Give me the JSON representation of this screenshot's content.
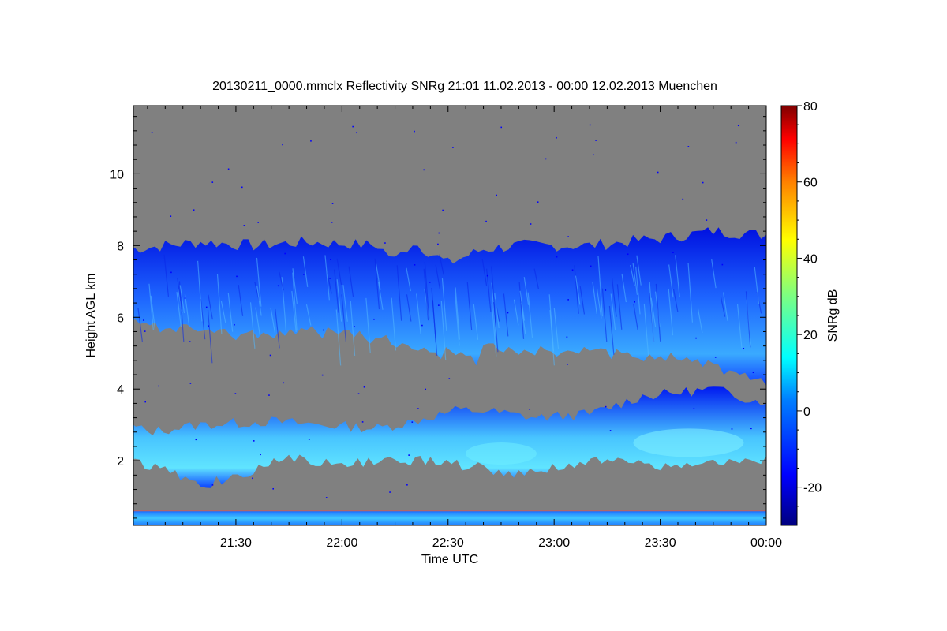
{
  "chart_data": {
    "type": "heatmap",
    "title": "20130211_0000.mmclx Reflectivity SNRg   21:01 11.02.2013 - 00:00 12.02.2013 Muenchen",
    "xlabel": "Time UTC",
    "ylabel": "Height AGL km",
    "x_ticks": [
      "21:30",
      "22:00",
      "22:30",
      "23:00",
      "23:30",
      "00:00"
    ],
    "x_tick_minutes": [
      30,
      60,
      90,
      120,
      150,
      180
    ],
    "xlim_minutes": [
      1,
      180
    ],
    "y_ticks": [
      2,
      4,
      6,
      8,
      10
    ],
    "ylim": [
      0.2,
      11.9
    ],
    "colorbar": {
      "label": "SNRg dB",
      "ticks": [
        -20,
        0,
        20,
        40,
        60,
        80
      ],
      "range": [
        -30,
        80
      ]
    },
    "background_color": "#808080",
    "layers": [
      {
        "name": "upper cloud layer",
        "time_minutes": [
          0,
          180
        ],
        "top_km": [
          7.9,
          8.2
        ],
        "base_km": [
          5.8,
          4.1
        ],
        "snr_db": [
          -25,
          8
        ]
      },
      {
        "name": "lower cloud layer",
        "time_minutes": [
          0,
          180
        ],
        "top_km": [
          3.0,
          4.0
        ],
        "base_km": [
          1.4,
          1.7
        ],
        "snr_db": [
          -25,
          10
        ]
      },
      {
        "name": "near-surface layer",
        "time_minutes": [
          0,
          180
        ],
        "top_km": [
          0.6,
          0.6
        ],
        "base_km": [
          0.2,
          0.2
        ],
        "snr_db": [
          -5,
          5
        ]
      }
    ]
  }
}
